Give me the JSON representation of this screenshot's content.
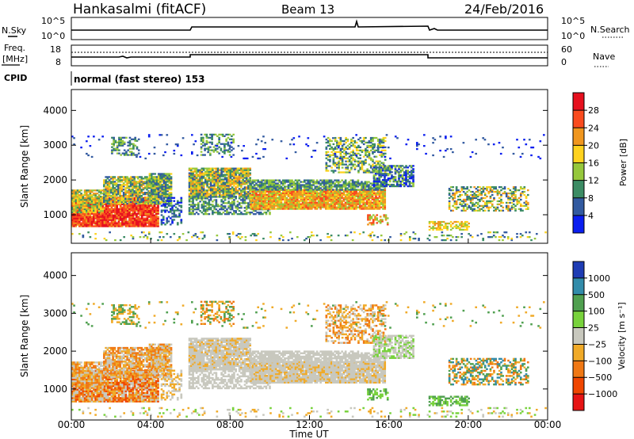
{
  "header": {
    "station": "Hankasalmi (fitACF)",
    "beam": "Beam 13",
    "date": "24/Feb/2016"
  },
  "aux_panels": {
    "nsky_label": "N.Sky",
    "nsky_ticks": [
      "10^5",
      "10^0"
    ],
    "nsearch_label": "N.Search",
    "nsearch_ticks": [
      "10^5",
      "10^0"
    ],
    "freq_label_1": "Freq.",
    "freq_label_2": "[MHz]",
    "freq_ticks": [
      "18",
      "8"
    ],
    "nave_label": "Nave",
    "nave_ticks": [
      "60",
      "0"
    ],
    "cpid_label": "CPID",
    "cpid_text": "normal (fast stereo) 153"
  },
  "chart_data": [
    {
      "type": "heatmap",
      "name": "power",
      "ylabel": "Slant Range [km]",
      "yticks": [
        "4000",
        "3000",
        "2000",
        "1000"
      ],
      "ylim": [
        180,
        4600
      ],
      "xlim": [
        0,
        24
      ],
      "colorbar": {
        "label": "Power [dB]",
        "ticks": [
          "28",
          "24",
          "20",
          "16",
          "12",
          "8",
          "4"
        ],
        "colors": [
          "#e6101e",
          "#fa4b1e",
          "#f0961e",
          "#ffd21e",
          "#96c83c",
          "#3c8c64",
          "#325aa0",
          "#0a1ef0"
        ]
      }
    },
    {
      "type": "heatmap",
      "name": "velocity",
      "ylabel": "Slant Range [km]",
      "yticks": [
        "4000",
        "3000",
        "2000",
        "1000"
      ],
      "ylim": [
        180,
        4600
      ],
      "xlim": [
        0,
        24
      ],
      "xlabel": "Time UT",
      "xticks": [
        "00:00",
        "04:00",
        "08:00",
        "12:00",
        "16:00",
        "20:00",
        "00:00"
      ],
      "colorbar": {
        "label": "Velocity [m s⁻¹]",
        "ticks": [
          "1000",
          "500",
          "100",
          "25",
          "−25",
          "−100",
          "−500",
          "−1000"
        ],
        "colors": [
          "#1e3cb4",
          "#328caa",
          "#50a050",
          "#78d23c",
          "#c8c8be",
          "#f0aa28",
          "#f07814",
          "#f04600",
          "#e61414"
        ]
      }
    }
  ]
}
